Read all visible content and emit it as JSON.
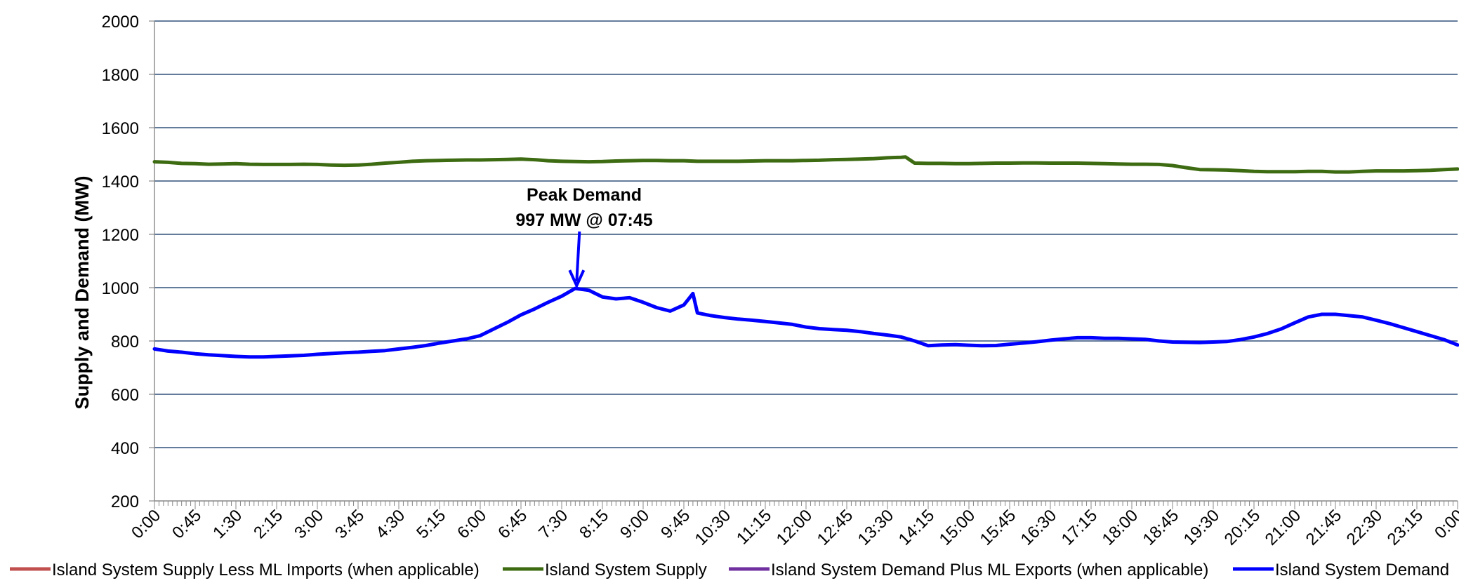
{
  "chart_data": {
    "type": "line",
    "title": "",
    "xlabel": "",
    "ylabel": "Supply and Demand (MW)",
    "ylim": [
      200,
      2000
    ],
    "yticks": [
      200,
      400,
      600,
      800,
      1000,
      1200,
      1400,
      1600,
      1800,
      2000
    ],
    "xlim": [
      "0:00",
      "0:00"
    ],
    "x_tick_labels": [
      "0:00",
      "0:45",
      "1:30",
      "2:15",
      "3:00",
      "3:45",
      "4:30",
      "5:15",
      "6:00",
      "6:45",
      "7:30",
      "8:15",
      "9:00",
      "9:45",
      "10:30",
      "11:15",
      "12:00",
      "12:45",
      "13:30",
      "14:15",
      "15:00",
      "15:45",
      "16:30",
      "17:15",
      "18:00",
      "18:45",
      "19:30",
      "20:15",
      "21:00",
      "21:45",
      "22:30",
      "23:15",
      "0:00"
    ],
    "grid": "horizontal",
    "legend_position": "bottom",
    "annotation": {
      "line1": "Peak Demand",
      "line2": "997 MW @ 07:45",
      "x": "7:45",
      "y": 997
    },
    "series": [
      {
        "name": "Island System Supply Less ML Imports (when applicable)",
        "color": "#c0504d",
        "points": []
      },
      {
        "name": "Island System Supply",
        "color": "#3d6b12",
        "points": [
          [
            "0:00",
            1472
          ],
          [
            "0:15",
            1470
          ],
          [
            "0:30",
            1466
          ],
          [
            "0:45",
            1465
          ],
          [
            "1:00",
            1463
          ],
          [
            "1:15",
            1464
          ],
          [
            "1:30",
            1465
          ],
          [
            "1:45",
            1463
          ],
          [
            "2:00",
            1462
          ],
          [
            "2:15",
            1462
          ],
          [
            "2:30",
            1462
          ],
          [
            "2:45",
            1463
          ],
          [
            "3:00",
            1462
          ],
          [
            "3:15",
            1460
          ],
          [
            "3:30",
            1459
          ],
          [
            "3:45",
            1460
          ],
          [
            "4:00",
            1463
          ],
          [
            "4:15",
            1467
          ],
          [
            "4:30",
            1470
          ],
          [
            "4:45",
            1474
          ],
          [
            "5:00",
            1476
          ],
          [
            "5:15",
            1477
          ],
          [
            "5:30",
            1478
          ],
          [
            "5:45",
            1479
          ],
          [
            "6:00",
            1479
          ],
          [
            "6:15",
            1480
          ],
          [
            "6:30",
            1481
          ],
          [
            "6:45",
            1482
          ],
          [
            "7:00",
            1480
          ],
          [
            "7:15",
            1476
          ],
          [
            "7:30",
            1474
          ],
          [
            "7:45",
            1473
          ],
          [
            "8:00",
            1472
          ],
          [
            "8:15",
            1473
          ],
          [
            "8:30",
            1475
          ],
          [
            "8:45",
            1476
          ],
          [
            "9:00",
            1477
          ],
          [
            "9:15",
            1477
          ],
          [
            "9:30",
            1476
          ],
          [
            "9:45",
            1476
          ],
          [
            "10:00",
            1474
          ],
          [
            "10:15",
            1474
          ],
          [
            "10:30",
            1474
          ],
          [
            "10:45",
            1474
          ],
          [
            "11:00",
            1475
          ],
          [
            "11:15",
            1476
          ],
          [
            "11:30",
            1476
          ],
          [
            "11:45",
            1476
          ],
          [
            "12:00",
            1477
          ],
          [
            "12:15",
            1478
          ],
          [
            "12:30",
            1480
          ],
          [
            "12:45",
            1481
          ],
          [
            "13:00",
            1482
          ],
          [
            "13:15",
            1484
          ],
          [
            "13:30",
            1487
          ],
          [
            "13:45",
            1489
          ],
          [
            "13:50",
            1490
          ],
          [
            "14:00",
            1467
          ],
          [
            "14:15",
            1466
          ],
          [
            "14:30",
            1466
          ],
          [
            "14:45",
            1465
          ],
          [
            "15:00",
            1465
          ],
          [
            "15:15",
            1466
          ],
          [
            "15:30",
            1467
          ],
          [
            "15:45",
            1467
          ],
          [
            "16:00",
            1468
          ],
          [
            "16:15",
            1468
          ],
          [
            "16:30",
            1467
          ],
          [
            "16:45",
            1467
          ],
          [
            "17:00",
            1467
          ],
          [
            "17:15",
            1466
          ],
          [
            "17:30",
            1465
          ],
          [
            "17:45",
            1464
          ],
          [
            "18:00",
            1463
          ],
          [
            "18:15",
            1463
          ],
          [
            "18:30",
            1462
          ],
          [
            "18:45",
            1458
          ],
          [
            "19:00",
            1450
          ],
          [
            "19:15",
            1443
          ],
          [
            "19:30",
            1442
          ],
          [
            "19:45",
            1441
          ],
          [
            "20:00",
            1439
          ],
          [
            "20:15",
            1436
          ],
          [
            "20:30",
            1435
          ],
          [
            "20:45",
            1435
          ],
          [
            "21:00",
            1435
          ],
          [
            "21:15",
            1436
          ],
          [
            "21:30",
            1436
          ],
          [
            "21:45",
            1434
          ],
          [
            "22:00",
            1434
          ],
          [
            "22:15",
            1436
          ],
          [
            "22:30",
            1438
          ],
          [
            "22:45",
            1438
          ],
          [
            "23:00",
            1438
          ],
          [
            "23:15",
            1439
          ],
          [
            "23:30",
            1440
          ],
          [
            "23:45",
            1443
          ],
          [
            "24:00",
            1445
          ]
        ]
      },
      {
        "name": "Island System Demand Plus ML Exports (when applicable)",
        "color": "#7030a0",
        "points": []
      },
      {
        "name": "Island System Demand",
        "color": "#0000ff",
        "points": [
          [
            "0:00",
            770
          ],
          [
            "0:15",
            762
          ],
          [
            "0:30",
            758
          ],
          [
            "0:45",
            752
          ],
          [
            "1:00",
            748
          ],
          [
            "1:15",
            745
          ],
          [
            "1:30",
            742
          ],
          [
            "1:45",
            740
          ],
          [
            "2:00",
            740
          ],
          [
            "2:15",
            742
          ],
          [
            "2:30",
            744
          ],
          [
            "2:45",
            746
          ],
          [
            "3:00",
            750
          ],
          [
            "3:15",
            753
          ],
          [
            "3:30",
            756
          ],
          [
            "3:45",
            758
          ],
          [
            "4:00",
            761
          ],
          [
            "4:15",
            764
          ],
          [
            "4:30",
            770
          ],
          [
            "4:45",
            776
          ],
          [
            "5:00",
            783
          ],
          [
            "5:15",
            792
          ],
          [
            "5:30",
            800
          ],
          [
            "5:45",
            808
          ],
          [
            "6:00",
            820
          ],
          [
            "6:15",
            845
          ],
          [
            "6:30",
            870
          ],
          [
            "6:45",
            898
          ],
          [
            "7:00",
            920
          ],
          [
            "7:15",
            945
          ],
          [
            "7:30",
            968
          ],
          [
            "7:45",
            997
          ],
          [
            "8:00",
            990
          ],
          [
            "8:15",
            965
          ],
          [
            "8:30",
            958
          ],
          [
            "8:45",
            962
          ],
          [
            "9:00",
            945
          ],
          [
            "9:15",
            925
          ],
          [
            "9:30",
            912
          ],
          [
            "9:45",
            935
          ],
          [
            "9:55",
            978
          ],
          [
            "10:00",
            905
          ],
          [
            "10:15",
            895
          ],
          [
            "10:30",
            888
          ],
          [
            "10:45",
            882
          ],
          [
            "11:00",
            878
          ],
          [
            "11:15",
            873
          ],
          [
            "11:30",
            868
          ],
          [
            "11:45",
            862
          ],
          [
            "12:00",
            852
          ],
          [
            "12:15",
            846
          ],
          [
            "12:30",
            843
          ],
          [
            "12:45",
            840
          ],
          [
            "13:00",
            835
          ],
          [
            "13:15",
            828
          ],
          [
            "13:30",
            822
          ],
          [
            "13:45",
            815
          ],
          [
            "14:00",
            800
          ],
          [
            "14:15",
            782
          ],
          [
            "14:30",
            785
          ],
          [
            "14:45",
            786
          ],
          [
            "15:00",
            784
          ],
          [
            "15:15",
            782
          ],
          [
            "15:30",
            783
          ],
          [
            "15:45",
            788
          ],
          [
            "16:00",
            792
          ],
          [
            "16:15",
            797
          ],
          [
            "16:30",
            803
          ],
          [
            "16:45",
            808
          ],
          [
            "17:00",
            812
          ],
          [
            "17:15",
            812
          ],
          [
            "17:30",
            810
          ],
          [
            "17:45",
            810
          ],
          [
            "18:00",
            808
          ],
          [
            "18:15",
            806
          ],
          [
            "18:30",
            800
          ],
          [
            "18:45",
            796
          ],
          [
            "19:00",
            795
          ],
          [
            "19:15",
            794
          ],
          [
            "19:30",
            796
          ],
          [
            "19:45",
            798
          ],
          [
            "20:00",
            805
          ],
          [
            "20:15",
            815
          ],
          [
            "20:30",
            828
          ],
          [
            "20:45",
            845
          ],
          [
            "21:00",
            868
          ],
          [
            "21:15",
            890
          ],
          [
            "21:30",
            900
          ],
          [
            "21:45",
            900
          ],
          [
            "22:00",
            895
          ],
          [
            "22:15",
            890
          ],
          [
            "22:30",
            878
          ],
          [
            "22:45",
            865
          ],
          [
            "23:00",
            850
          ],
          [
            "23:15",
            835
          ],
          [
            "23:30",
            820
          ],
          [
            "23:45",
            805
          ],
          [
            "24:00",
            785
          ]
        ]
      }
    ]
  }
}
